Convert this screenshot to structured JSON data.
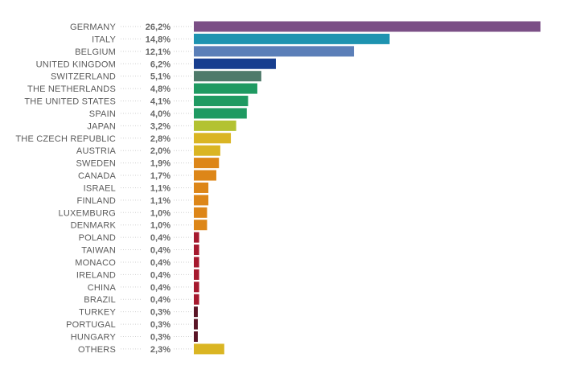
{
  "chart_data": {
    "type": "bar",
    "orientation": "horizontal",
    "value_format": "percent-comma",
    "xlim": [
      0,
      26.2
    ],
    "grid": false,
    "legend": "none",
    "categories": [
      "GERMANY",
      "ITALY",
      "BELGIUM",
      "UNITED KINGDOM",
      "SWITZERLAND",
      "THE NETHERLANDS",
      "THE UNITED STATES",
      "SPAIN",
      "JAPAN",
      "THE CZECH REPUBLIC",
      "AUSTRIA",
      "SWEDEN",
      "CANADA",
      "ISRAEL",
      "FINLAND",
      "LUXEMBURG",
      "DENMARK",
      "POLAND",
      "TAIWAN",
      "MONACO",
      "IRELAND",
      "CHINA",
      "BRAZIL",
      "TURKEY",
      "PORTUGAL",
      "HUNGARY",
      "OTHERS"
    ],
    "values": [
      26.2,
      14.8,
      12.1,
      6.2,
      5.1,
      4.8,
      4.1,
      4.0,
      3.2,
      2.8,
      2.0,
      1.9,
      1.7,
      1.1,
      1.1,
      1.0,
      1.0,
      0.4,
      0.4,
      0.4,
      0.4,
      0.4,
      0.4,
      0.3,
      0.3,
      0.3,
      2.3
    ],
    "value_labels": [
      "26,2%",
      "14,8%",
      "12,1%",
      "6,2%",
      "5,1%",
      "4,8%",
      "4,1%",
      "4,0%",
      "3,2%",
      "2,8%",
      "2,0%",
      "1,9%",
      "1,7%",
      "1,1%",
      "1,1%",
      "1,0%",
      "1,0%",
      "0,4%",
      "0,4%",
      "0,4%",
      "0,4%",
      "0,4%",
      "0,4%",
      "0,3%",
      "0,3%",
      "0,3%",
      "2,3%"
    ],
    "colors": [
      "#7b4f86",
      "#1e93b0",
      "#5b7fb8",
      "#173e8f",
      "#4e7a6a",
      "#1f9a62",
      "#1f9a62",
      "#1f9a62",
      "#b3c232",
      "#dab523",
      "#dab523",
      "#dd8618",
      "#dd8618",
      "#dd8618",
      "#dd8618",
      "#dd8618",
      "#dd8618",
      "#a6192e",
      "#a6192e",
      "#a6192e",
      "#a6192e",
      "#a6192e",
      "#a6192e",
      "#5a1526",
      "#5a1526",
      "#5a1526",
      "#dab523"
    ]
  }
}
